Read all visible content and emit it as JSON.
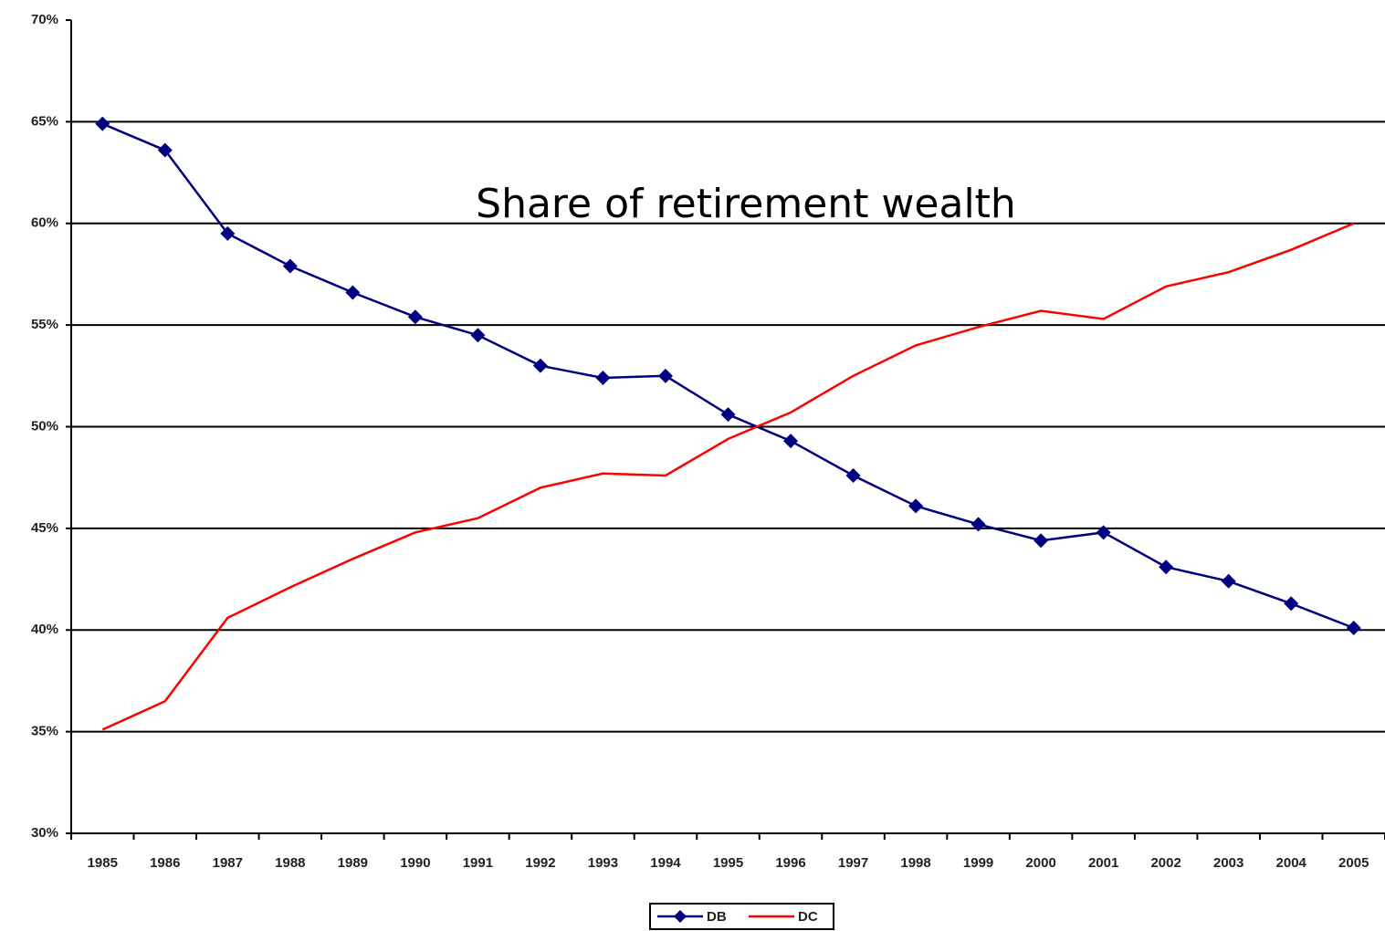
{
  "chart_data": {
    "type": "line",
    "title": "Share of retirement wealth",
    "categories": [
      "1985",
      "1986",
      "1987",
      "1988",
      "1989",
      "1990",
      "1991",
      "1992",
      "1993",
      "1994",
      "1995",
      "1996",
      "1997",
      "1998",
      "1999",
      "2000",
      "2001",
      "2002",
      "2003",
      "2004",
      "2005"
    ],
    "series": [
      {
        "name": "DB",
        "color": "#000080",
        "marker": "diamond",
        "values": [
          64.9,
          63.6,
          59.5,
          57.9,
          56.6,
          55.4,
          54.5,
          53.0,
          52.4,
          52.5,
          50.6,
          49.3,
          47.6,
          46.1,
          45.2,
          44.4,
          44.8,
          43.1,
          42.4,
          41.3,
          40.1
        ]
      },
      {
        "name": "DC",
        "color": "#ff0000",
        "values": [
          35.1,
          36.5,
          40.6,
          42.1,
          43.5,
          44.8,
          45.5,
          47.0,
          47.7,
          47.6,
          49.4,
          50.7,
          52.5,
          54.0,
          54.9,
          55.7,
          55.3,
          56.9,
          57.6,
          58.7,
          60.0
        ]
      }
    ],
    "ylim": [
      30,
      70
    ],
    "yticks": [
      {
        "value": 30,
        "label": "30%"
      },
      {
        "value": 35,
        "label": "35%"
      },
      {
        "value": 40,
        "label": "40%"
      },
      {
        "value": 45,
        "label": "45%"
      },
      {
        "value": 50,
        "label": "50%"
      },
      {
        "value": 55,
        "label": "55%"
      },
      {
        "value": 60,
        "label": "60%"
      },
      {
        "value": 65,
        "label": "65%"
      },
      {
        "value": 70,
        "label": "70%"
      }
    ],
    "grid": true,
    "legend": "bottom"
  }
}
